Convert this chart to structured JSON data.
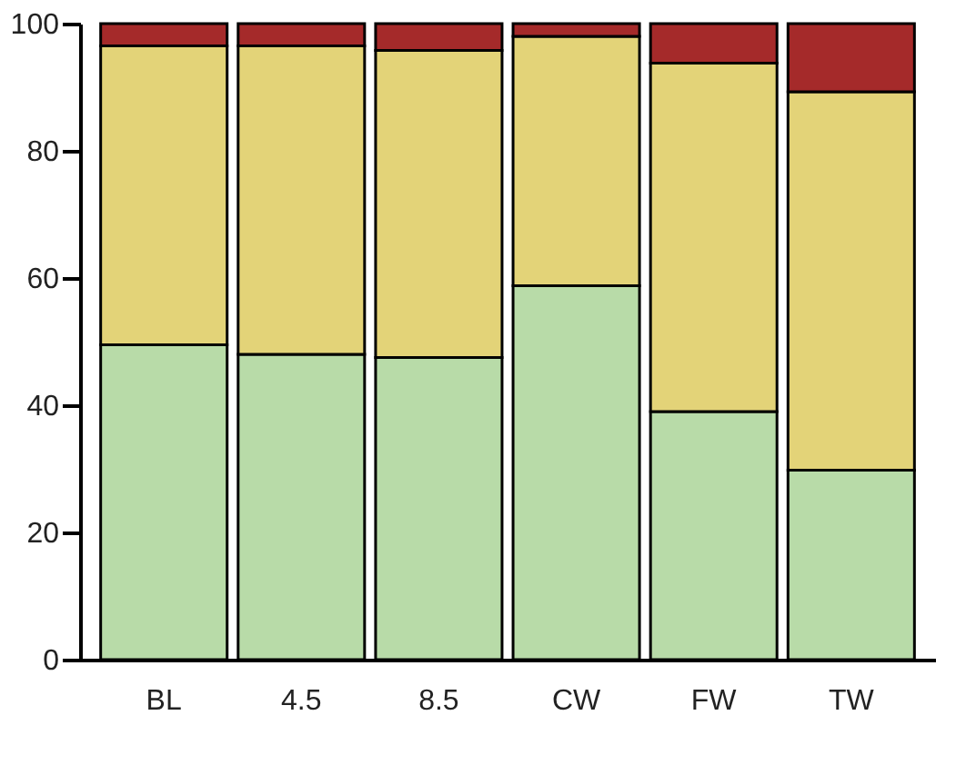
{
  "chart_data": {
    "type": "bar",
    "stacked": true,
    "categories": [
      "BL",
      "4.5",
      "8.5",
      "CW",
      "FW",
      "TW"
    ],
    "series": [
      {
        "color": "#b8dba8",
        "values": [
          49.5,
          48,
          47.5,
          58.8,
          39,
          29.8
        ]
      },
      {
        "color": "#e3d378",
        "values": [
          47,
          48.5,
          48.3,
          39.2,
          54.8,
          59.5
        ]
      },
      {
        "color": "#a52a2a",
        "values": [
          3.5,
          3.5,
          4.2,
          2,
          6.2,
          10.7
        ]
      }
    ],
    "ylim": [
      0,
      100
    ],
    "yticks": [
      0,
      20,
      40,
      60,
      80,
      100
    ],
    "grid": false,
    "legend": false
  }
}
